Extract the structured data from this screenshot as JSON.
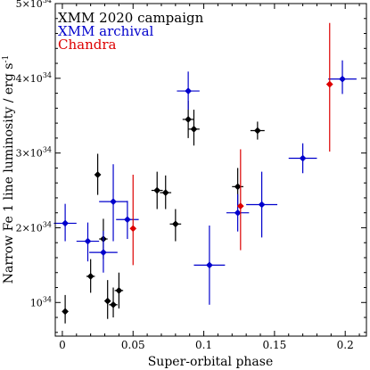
{
  "chart_data": {
    "type": "scatter",
    "xlabel": "Super-orbital phase",
    "ylabel": "Narrow Fe 1 line luminosity / erg s",
    "ylabel_superscript": "-1",
    "xlim": [
      -0.005,
      0.215
    ],
    "ylim": [
      0.55,
      5.0
    ],
    "x_ticks": [
      0,
      0.05,
      0.1,
      0.15,
      0.2
    ],
    "x_tick_labels": [
      "0",
      "0.05",
      "0.1",
      "0.15",
      "0.2"
    ],
    "y_ticks": [
      1,
      2,
      3,
      4,
      5
    ],
    "y_tick_mantissas": [
      "",
      "2",
      "3",
      "4",
      "5"
    ],
    "y_tick_exponent_base": "10",
    "y_tick_exponent": "34",
    "legend_position": "top-left",
    "series": [
      {
        "name": "XMM 2020 campaign",
        "color": "#000000",
        "marker": "diamond",
        "points": [
          {
            "x": 0.002,
            "y": 0.88,
            "xerr": 0.0,
            "ylo": 0.72,
            "yhi": 1.1
          },
          {
            "x": 0.02,
            "y": 1.35,
            "xerr": 0.003,
            "ylo": 1.13,
            "yhi": 1.58
          },
          {
            "x": 0.025,
            "y": 2.71,
            "xerr": 0.002,
            "ylo": 2.44,
            "yhi": 2.99
          },
          {
            "x": 0.029,
            "y": 1.85,
            "xerr": 0.003,
            "ylo": 1.58,
            "yhi": 2.12
          },
          {
            "x": 0.032,
            "y": 1.02,
            "xerr": 0.002,
            "ylo": 0.78,
            "yhi": 1.3
          },
          {
            "x": 0.036,
            "y": 0.97,
            "xerr": 0.003,
            "ylo": 0.8,
            "yhi": 1.2
          },
          {
            "x": 0.04,
            "y": 1.16,
            "xerr": 0.003,
            "ylo": 0.92,
            "yhi": 1.4
          },
          {
            "x": 0.067,
            "y": 2.5,
            "xerr": 0.004,
            "ylo": 2.25,
            "yhi": 2.75
          },
          {
            "x": 0.073,
            "y": 2.47,
            "xerr": 0.004,
            "ylo": 2.25,
            "yhi": 2.7
          },
          {
            "x": 0.08,
            "y": 2.05,
            "xerr": 0.004,
            "ylo": 1.82,
            "yhi": 2.25
          },
          {
            "x": 0.089,
            "y": 3.45,
            "xerr": 0.004,
            "ylo": 3.2,
            "yhi": 3.7
          },
          {
            "x": 0.093,
            "y": 3.32,
            "xerr": 0.004,
            "ylo": 3.1,
            "yhi": 3.58
          },
          {
            "x": 0.124,
            "y": 2.55,
            "xerr": 0.004,
            "ylo": 2.3,
            "yhi": 2.8
          },
          {
            "x": 0.138,
            "y": 3.3,
            "xerr": 0.005,
            "ylo": 3.18,
            "yhi": 3.42
          }
        ]
      },
      {
        "name": "XMM archival",
        "color": "#0000cc",
        "marker": "diamond",
        "points": [
          {
            "x": 0.002,
            "y": 2.06,
            "xerr": 0.008,
            "ylo": 1.82,
            "yhi": 2.32
          },
          {
            "x": 0.018,
            "y": 1.82,
            "xerr": 0.008,
            "ylo": 1.55,
            "yhi": 2.07
          },
          {
            "x": 0.029,
            "y": 1.67,
            "xerr": 0.01,
            "ylo": 1.4,
            "yhi": 1.96
          },
          {
            "x": 0.036,
            "y": 2.35,
            "xerr": 0.01,
            "ylo": 1.82,
            "yhi": 2.85
          },
          {
            "x": 0.046,
            "y": 2.11,
            "xerr": 0.008,
            "ylo": 1.85,
            "yhi": 2.36
          },
          {
            "x": 0.089,
            "y": 3.83,
            "xerr": 0.008,
            "ylo": 3.58,
            "yhi": 4.09
          },
          {
            "x": 0.104,
            "y": 1.5,
            "xerr": 0.011,
            "ylo": 0.97,
            "yhi": 2.03
          },
          {
            "x": 0.124,
            "y": 2.2,
            "xerr": 0.008,
            "ylo": 1.95,
            "yhi": 2.45
          },
          {
            "x": 0.141,
            "y": 2.31,
            "xerr": 0.011,
            "ylo": 1.87,
            "yhi": 2.75
          },
          {
            "x": 0.17,
            "y": 2.93,
            "xerr": 0.01,
            "ylo": 2.73,
            "yhi": 3.13
          },
          {
            "x": 0.198,
            "y": 3.99,
            "xerr": 0.01,
            "ylo": 3.79,
            "yhi": 4.24
          }
        ]
      },
      {
        "name": "Chandra",
        "color": "#dd0000",
        "marker": "diamond",
        "points": [
          {
            "x": 0.05,
            "y": 1.99,
            "xerr": 0.002,
            "ylo": 1.5,
            "yhi": 2.71
          },
          {
            "x": 0.126,
            "y": 2.29,
            "xerr": 0.002,
            "ylo": 1.7,
            "yhi": 3.05
          },
          {
            "x": 0.189,
            "y": 3.92,
            "xerr": 0.002,
            "ylo": 3.02,
            "yhi": 4.74
          }
        ]
      }
    ]
  }
}
